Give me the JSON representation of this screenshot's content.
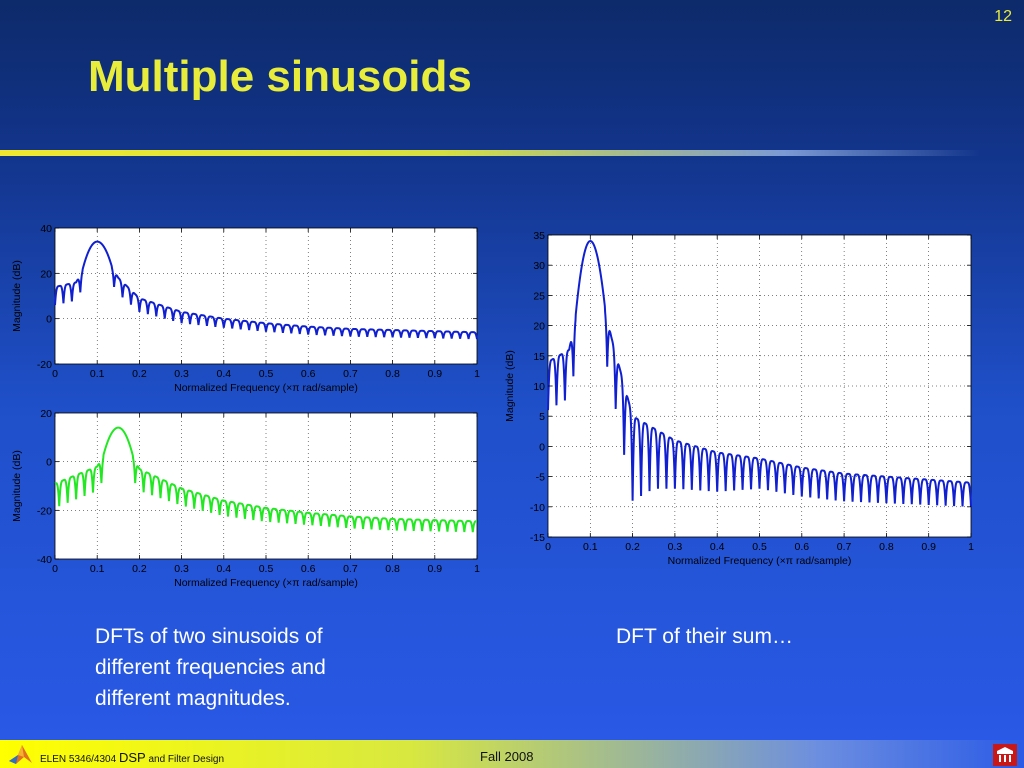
{
  "slide": {
    "number": "12",
    "title": "Multiple sinusoids",
    "caption_left": [
      "DFTs of two sinusoids of",
      "different frequencies and",
      "different magnitudes."
    ],
    "caption_right": "DFT of their sum…",
    "footer": {
      "course_prefix": "ELEN 5346/4304",
      "course_dsp": "DSP",
      "course_suffix": "and Filter Design",
      "term": "Fall 2008"
    }
  },
  "chart_data": [
    {
      "type": "line",
      "id": "top-left",
      "xlabel": "Normalized Frequency  (×π rad/sample)",
      "ylabel": "Magnitude (dB)",
      "xlim": [
        0,
        1
      ],
      "ylim": [
        -20,
        40
      ],
      "xticks": [
        0,
        0.1,
        0.2,
        0.3,
        0.4,
        0.5,
        0.6,
        0.7,
        0.8,
        0.9,
        1
      ],
      "yticks": [
        -20,
        0,
        20,
        40
      ],
      "grid": true,
      "series": [
        {
          "color": "#1020d0",
          "peak": 0.1,
          "peak_db": 34,
          "envelope_db": [
            [
              0,
              14
            ],
            [
              0.05,
              16
            ],
            [
              0.1,
              34
            ],
            [
              0.15,
              18
            ],
            [
              0.2,
              9
            ],
            [
              0.3,
              3
            ],
            [
              0.4,
              0
            ],
            [
              0.5,
              -2
            ],
            [
              0.6,
              -3.5
            ],
            [
              0.7,
              -4.5
            ],
            [
              0.8,
              -5
            ],
            [
              0.9,
              -5.5
            ],
            [
              1,
              -6
            ]
          ],
          "null_depth_db": [
            [
              0,
              8
            ],
            [
              0.1,
              8
            ],
            [
              0.2,
              6
            ],
            [
              0.4,
              4
            ],
            [
              0.6,
              3.5
            ],
            [
              1,
              3
            ]
          ],
          "lobes": 50
        }
      ]
    },
    {
      "type": "line",
      "id": "bottom-left",
      "xlabel": "Normalized Frequency  (×π rad/sample)",
      "ylabel": "Magnitude (dB)",
      "xlim": [
        0,
        1
      ],
      "ylim": [
        -40,
        20
      ],
      "xticks": [
        0,
        0.1,
        0.2,
        0.3,
        0.4,
        0.5,
        0.6,
        0.7,
        0.8,
        0.9,
        1
      ],
      "yticks": [
        -40,
        -20,
        0,
        20
      ],
      "grid": true,
      "series": [
        {
          "color": "#22e822",
          "peak": 0.15,
          "peak_db": 14,
          "envelope_db": [
            [
              0,
              -9
            ],
            [
              0.1,
              -2
            ],
            [
              0.15,
              14
            ],
            [
              0.2,
              -3
            ],
            [
              0.3,
              -11
            ],
            [
              0.4,
              -16
            ],
            [
              0.5,
              -19
            ],
            [
              0.6,
              -21
            ],
            [
              0.7,
              -22.5
            ],
            [
              0.8,
              -23.5
            ],
            [
              0.9,
              -24
            ],
            [
              1,
              -24.5
            ]
          ],
          "null_depth_db": [
            [
              0,
              10
            ],
            [
              0.15,
              10
            ],
            [
              0.3,
              7
            ],
            [
              0.6,
              5
            ],
            [
              1,
              4.5
            ]
          ],
          "lobes": 50
        }
      ]
    },
    {
      "type": "line",
      "id": "right",
      "xlabel": "Normalized Frequency  (×π rad/sample)",
      "ylabel": "Magnitude (dB)",
      "xlim": [
        0,
        1
      ],
      "ylim": [
        -15,
        35
      ],
      "xticks": [
        0,
        0.1,
        0.2,
        0.3,
        0.4,
        0.5,
        0.6,
        0.7,
        0.8,
        0.9,
        1
      ],
      "yticks": [
        -15,
        -10,
        -5,
        0,
        5,
        10,
        15,
        20,
        25,
        30,
        35
      ],
      "grid": true,
      "series": [
        {
          "color": "#1020d0",
          "peak": 0.1,
          "peak_db": 34,
          "envelope_db": [
            [
              0,
              14
            ],
            [
              0.05,
              16
            ],
            [
              0.1,
              34
            ],
            [
              0.15,
              18
            ],
            [
              0.2,
              5
            ],
            [
              0.3,
              1
            ],
            [
              0.4,
              -1
            ],
            [
              0.5,
              -2
            ],
            [
              0.6,
              -3.5
            ],
            [
              0.7,
              -4.5
            ],
            [
              0.8,
              -5
            ],
            [
              0.9,
              -5.5
            ],
            [
              1,
              -6
            ]
          ],
          "null_depth_db": [
            [
              0,
              8
            ],
            [
              0.15,
              8
            ],
            [
              0.2,
              14
            ],
            [
              0.25,
              10
            ],
            [
              0.3,
              8
            ],
            [
              0.5,
              5
            ],
            [
              1,
              4
            ]
          ],
          "lobes": 50
        }
      ]
    }
  ]
}
